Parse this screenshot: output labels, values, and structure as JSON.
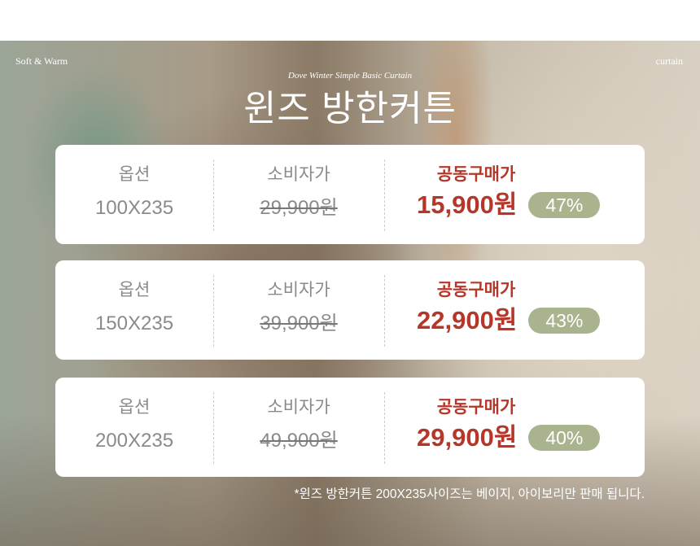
{
  "header": {
    "left": "Soft & Warm",
    "right": "curtain",
    "subtitle": "Dove Winter Simple Basic Curtain",
    "title": "윈즈 방한커튼"
  },
  "columns": {
    "option": "옵션",
    "retail": "소비자가",
    "group": "공동구매가"
  },
  "rows": [
    {
      "size": "100X235",
      "retail": "29,900원",
      "price": "15,900원",
      "discount": "47%"
    },
    {
      "size": "150X235",
      "retail": "39,900원",
      "price": "22,900원",
      "discount": "43%"
    },
    {
      "size": "200X235",
      "retail": "49,900원",
      "price": "29,900원",
      "discount": "40%"
    }
  ],
  "note": "*윈즈 방한커튼  200X235사이즈는 베이지, 아이보리만 판매 됩니다.",
  "colors": {
    "accent": "#b5372a",
    "badge": "#a9b48f"
  }
}
